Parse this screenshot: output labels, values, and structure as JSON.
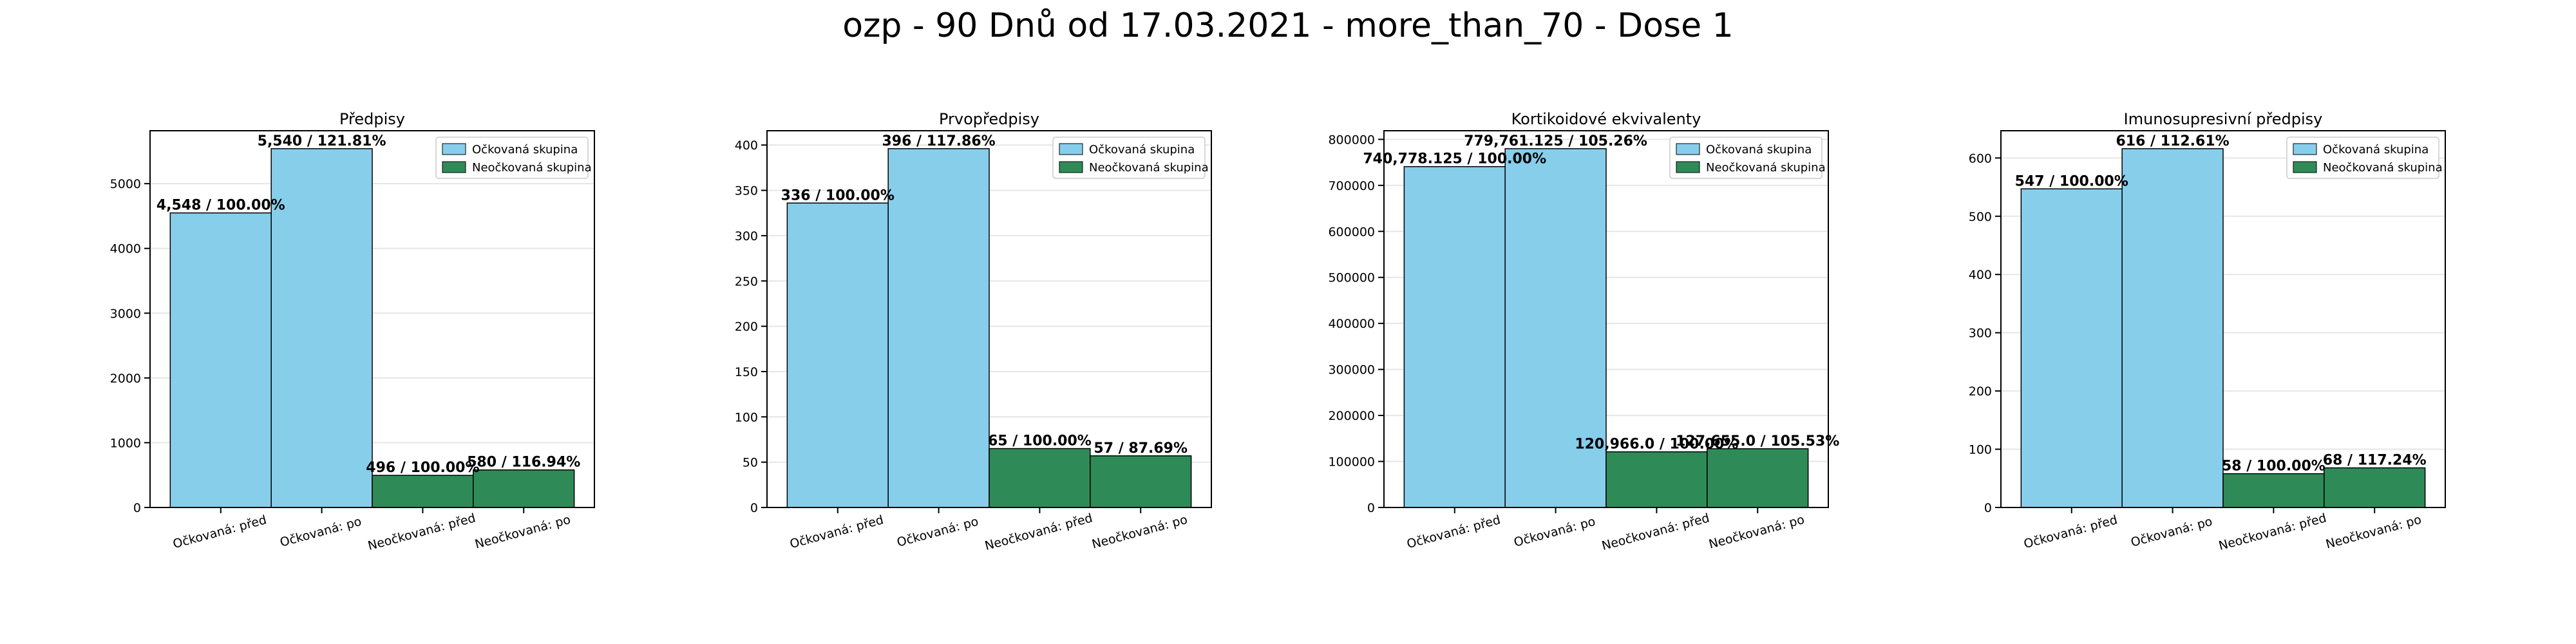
{
  "suptitle": "ozp - 90 Dnů od 17.03.2021 - more_than_70 - Dose 1",
  "colors": {
    "vaccinated": "#87CEEB",
    "unvaccinated": "#2E8B57",
    "edge": "#000000",
    "grid": "#e6e6e6"
  },
  "legend": {
    "vaccinated": "Očkovaná skupina",
    "unvaccinated": "Neočkovaná skupina",
    "placement": "upper right"
  },
  "chart_data": [
    {
      "type": "bar",
      "title": "Předpisy",
      "categories": [
        "Očkovaná: před",
        "Očkovaná: po",
        "Neočkovaná: před",
        "Neočkovaná: po"
      ],
      "values": [
        4548,
        5540,
        496,
        580
      ],
      "labels": [
        "4,548 / 100.00%",
        "5,540 / 121.81%",
        "496 / 100.00%",
        "580 / 116.94%"
      ],
      "groups": [
        "vaccinated",
        "vaccinated",
        "unvaccinated",
        "unvaccinated"
      ],
      "ylim": [
        0,
        5817
      ],
      "yticks": [
        0,
        1000,
        2000,
        3000,
        4000,
        5000
      ],
      "ytick_labels": [
        "0",
        "1000",
        "2000",
        "3000",
        "4000",
        "5000"
      ],
      "grid": true
    },
    {
      "type": "bar",
      "title": "Prvopředpisy",
      "categories": [
        "Očkovaná: před",
        "Očkovaná: po",
        "Neočkovaná: před",
        "Neočkovaná: po"
      ],
      "values": [
        336,
        396,
        65,
        57
      ],
      "labels": [
        "336 / 100.00%",
        "396 / 117.86%",
        "65 / 100.00%",
        "57 / 87.69%"
      ],
      "groups": [
        "vaccinated",
        "vaccinated",
        "unvaccinated",
        "unvaccinated"
      ],
      "ylim": [
        0,
        415.8
      ],
      "yticks": [
        0,
        50,
        100,
        150,
        200,
        250,
        300,
        350,
        400
      ],
      "ytick_labels": [
        "0",
        "50",
        "100",
        "150",
        "200",
        "250",
        "300",
        "350",
        "400"
      ],
      "grid": true
    },
    {
      "type": "bar",
      "title": "Kortikoidové ekvivalenty",
      "categories": [
        "Očkovaná: před",
        "Očkovaná: po",
        "Neočkovaná: před",
        "Neočkovaná: po"
      ],
      "values": [
        740778.125,
        779761.125,
        120966.0,
        127655.0
      ],
      "labels": [
        "740,778.125 / 100.00%",
        "779,761.125 / 105.26%",
        "120,966.0 / 100.00%",
        "127,655.0 / 105.53%"
      ],
      "groups": [
        "vaccinated",
        "vaccinated",
        "unvaccinated",
        "unvaccinated"
      ],
      "ylim": [
        0,
        818749
      ],
      "yticks": [
        0,
        100000,
        200000,
        300000,
        400000,
        500000,
        600000,
        700000,
        800000
      ],
      "ytick_labels": [
        "0",
        "100000",
        "200000",
        "300000",
        "400000",
        "500000",
        "600000",
        "700000",
        "800000"
      ],
      "grid": true
    },
    {
      "type": "bar",
      "title": "Imunosupresivní předpisy",
      "categories": [
        "Očkovaná: před",
        "Očkovaná: po",
        "Neočkovaná: před",
        "Neočkovaná: po"
      ],
      "values": [
        547,
        616,
        58,
        68
      ],
      "labels": [
        "547 / 100.00%",
        "616 / 112.61%",
        "58 / 100.00%",
        "68 / 117.24%"
      ],
      "groups": [
        "vaccinated",
        "vaccinated",
        "unvaccinated",
        "unvaccinated"
      ],
      "ylim": [
        0,
        646.8
      ],
      "yticks": [
        0,
        100,
        200,
        300,
        400,
        500,
        600
      ],
      "ytick_labels": [
        "0",
        "100",
        "200",
        "300",
        "400",
        "500",
        "600"
      ],
      "grid": true
    }
  ]
}
